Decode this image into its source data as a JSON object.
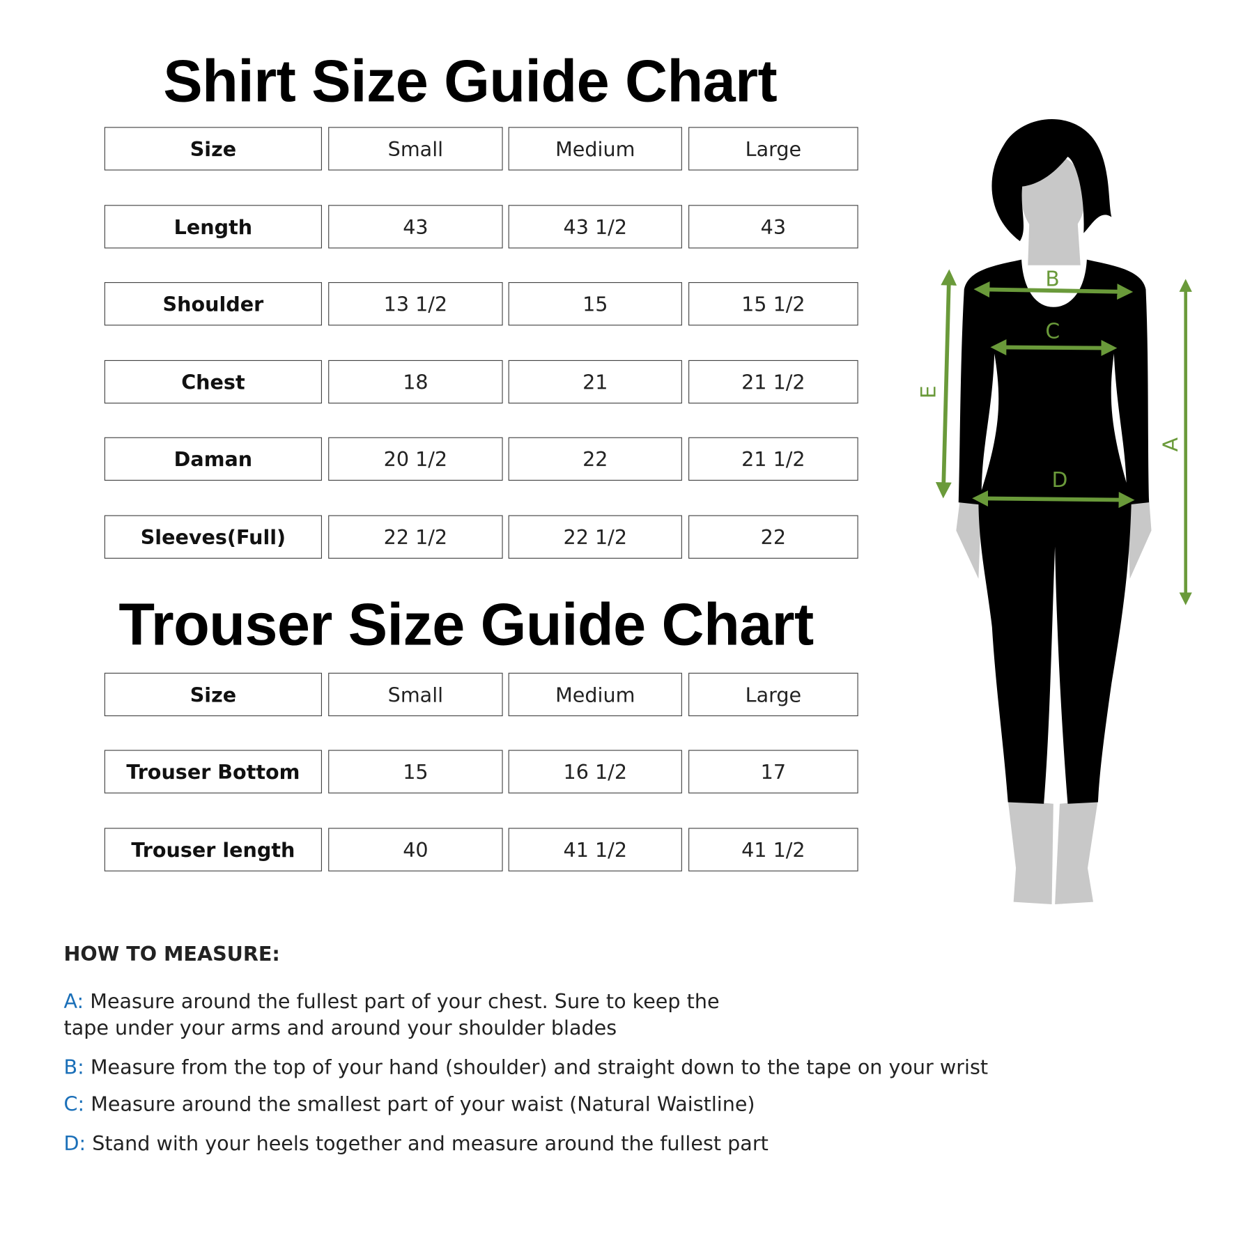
{
  "shirt": {
    "title": "Shirt Size Guide Chart",
    "header": [
      "Size",
      "Small",
      "Medium",
      "Large"
    ],
    "rows": [
      [
        "Length",
        "43",
        "43 1/2",
        "43"
      ],
      [
        "Shoulder",
        "13 1/2",
        "15",
        "15 1/2"
      ],
      [
        "Chest",
        "18",
        "21",
        "21 1/2"
      ],
      [
        "Daman",
        "20 1/2",
        "22",
        "21 1/2"
      ],
      [
        "Sleeves(Full)",
        "22 1/2",
        "22 1/2",
        "22"
      ]
    ]
  },
  "trouser": {
    "title": "Trouser Size Guide Chart",
    "header": [
      "Size",
      "Small",
      "Medium",
      "Large"
    ],
    "rows": [
      [
        "Trouser Bottom",
        "15",
        "16 1/2",
        "17"
      ],
      [
        "Trouser length",
        "40",
        "41 1/2",
        "41 1/2"
      ]
    ]
  },
  "figure": {
    "labels": {
      "A": "A",
      "B": "B",
      "C": "C",
      "D": "D",
      "E": "E"
    },
    "arrow_color": "#6a9a3a"
  },
  "how_to_measure": {
    "heading": "HOW TO MEASURE:",
    "items": [
      {
        "key": "A:",
        "lines": [
          "Measure around the fullest part of your chest. Sure to keep the",
          "tape under your arms and around your shoulder blades"
        ]
      },
      {
        "key": "B:",
        "lines": [
          "Measure from the top of your hand (shoulder) and straight down to the tape on your wrist"
        ]
      },
      {
        "key": "C:",
        "lines": [
          "Measure around the smallest part of your waist (Natural Waistline)"
        ]
      },
      {
        "key": "D:",
        "lines": [
          "Stand with your heels together and measure around the fullest part"
        ]
      }
    ],
    "key_color": "#1a6fb8"
  }
}
